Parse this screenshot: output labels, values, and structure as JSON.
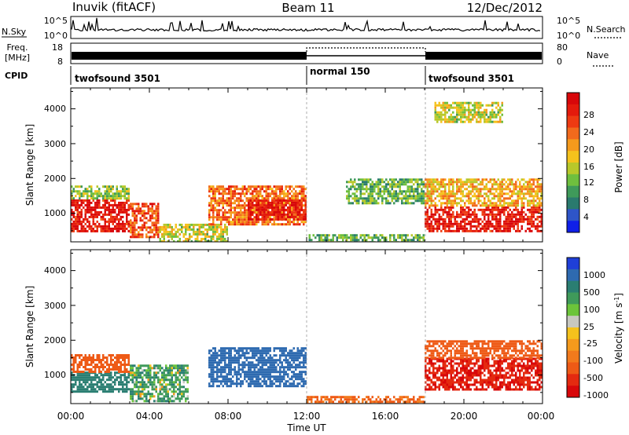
{
  "header": {
    "station": "Inuvik (fitACF)",
    "beam": "Beam 11",
    "date": "12/Dec/2012"
  },
  "noise_panel": {
    "label": "N.Sky",
    "right_label": "N.Search",
    "y_top": "10^5",
    "y_bottom": "10^0",
    "right_top": "10^5",
    "right_bottom": "10^0"
  },
  "freq_panel": {
    "label_line1": "Freq.",
    "label_line2": "[MHz]",
    "y_top": "18",
    "y_bottom": "8",
    "right_label": "Nave",
    "right_top": "80",
    "right_bottom": "0"
  },
  "cpid_panel": {
    "label": "CPID",
    "segments": [
      {
        "start_hour": 0,
        "end_hour": 12,
        "text": "twofsound 3501"
      },
      {
        "start_hour": 12,
        "end_hour": 18,
        "text": "normal 150"
      },
      {
        "start_hour": 18,
        "end_hour": 24,
        "text": "twofsound 3501"
      }
    ]
  },
  "axes": {
    "x_label": "Time UT",
    "x_ticks": [
      "00:00",
      "04:00",
      "08:00",
      "12:00",
      "16:00",
      "20:00",
      "00:00"
    ],
    "x_range_hours": [
      0,
      24
    ],
    "y_label": "Slant Range [km]",
    "y_ticks": [
      "1000",
      "2000",
      "3000",
      "4000"
    ],
    "y_range_km": [
      180,
      4600
    ]
  },
  "power_colorbar": {
    "label": "Power [dB]",
    "ticks": [
      "4",
      "8",
      "12",
      "16",
      "20",
      "24",
      "28"
    ],
    "colors": [
      "#0f1fe8",
      "#2e55c8",
      "#2a7a6e",
      "#3f9a5a",
      "#6fbf3e",
      "#b8c82a",
      "#f5c21c",
      "#f59a1c",
      "#f26a1c",
      "#ee3a12",
      "#e41a0c",
      "#d8070a"
    ]
  },
  "velocity_colorbar": {
    "label": "Velocity [m s",
    "label_sup": "-1",
    "label_end": "]",
    "ticks": [
      "1000",
      "500",
      "100",
      "25",
      "-25",
      "-100",
      "-500",
      "-1000"
    ],
    "colors": [
      "#1f3fd8",
      "#2e6ab0",
      "#2a7e72",
      "#3f9a5a",
      "#6cc43a",
      "#c8c8c0",
      "#f5c21c",
      "#f59a1c",
      "#f27a1c",
      "#ee5a16",
      "#e42a10",
      "#d8070a"
    ]
  },
  "chart_data": [
    {
      "type": "heatmap",
      "panel": "power",
      "xlabel": "Time UT",
      "ylabel": "Slant Range [km]",
      "xlim": [
        0,
        24
      ],
      "ylim": [
        180,
        4600
      ],
      "zlabel": "Power [dB]",
      "zlim": [
        0,
        30
      ],
      "regions": [
        {
          "t0": 0.0,
          "t1": 3.0,
          "r0": 500,
          "r1": 1400,
          "value": 28
        },
        {
          "t0": 0.0,
          "t1": 3.0,
          "r0": 1400,
          "r1": 1800,
          "value": 12
        },
        {
          "t0": 3.0,
          "t1": 4.5,
          "r0": 350,
          "r1": 1300,
          "value": 24
        },
        {
          "t0": 4.5,
          "t1": 8.0,
          "r0": 180,
          "r1": 700,
          "value": 14
        },
        {
          "t0": 7.0,
          "t1": 12.0,
          "r0": 700,
          "r1": 1800,
          "value": 22
        },
        {
          "t0": 9.0,
          "t1": 12.0,
          "r0": 800,
          "r1": 1400,
          "value": 28
        },
        {
          "t0": 12.0,
          "t1": 18.0,
          "r0": 180,
          "r1": 400,
          "value": 10
        },
        {
          "t0": 14.0,
          "t1": 18.0,
          "r0": 1300,
          "r1": 2000,
          "value": 10
        },
        {
          "t0": 18.0,
          "t1": 24.0,
          "r0": 500,
          "r1": 1200,
          "value": 28
        },
        {
          "t0": 18.0,
          "t1": 24.0,
          "r0": 1200,
          "r1": 2000,
          "value": 18
        },
        {
          "t0": 18.5,
          "t1": 22.0,
          "r0": 3600,
          "r1": 4200,
          "value": 14
        }
      ]
    },
    {
      "type": "heatmap",
      "panel": "velocity",
      "xlabel": "Time UT",
      "ylabel": "Slant Range [km]",
      "xlim": [
        0,
        24
      ],
      "ylim": [
        180,
        4600
      ],
      "zlabel": "Velocity [m s-1]",
      "zlim": [
        -1000,
        1000
      ],
      "regions": [
        {
          "t0": 0.0,
          "t1": 3.0,
          "r0": 500,
          "r1": 1100,
          "value": 100
        },
        {
          "t0": 0.0,
          "t1": 3.0,
          "r0": 1100,
          "r1": 1600,
          "value": -100
        },
        {
          "t0": 3.0,
          "t1": 6.0,
          "r0": 250,
          "r1": 1300,
          "value": 25
        },
        {
          "t0": 7.0,
          "t1": 12.0,
          "r0": 700,
          "r1": 1800,
          "value": 300
        },
        {
          "t0": 12.0,
          "t1": 18.0,
          "r0": 180,
          "r1": 400,
          "value": -50
        },
        {
          "t0": 18.0,
          "t1": 24.0,
          "r0": 600,
          "r1": 1500,
          "value": -500
        },
        {
          "t0": 18.0,
          "t1": 24.0,
          "r0": 1500,
          "r1": 2000,
          "value": -100
        }
      ]
    }
  ]
}
